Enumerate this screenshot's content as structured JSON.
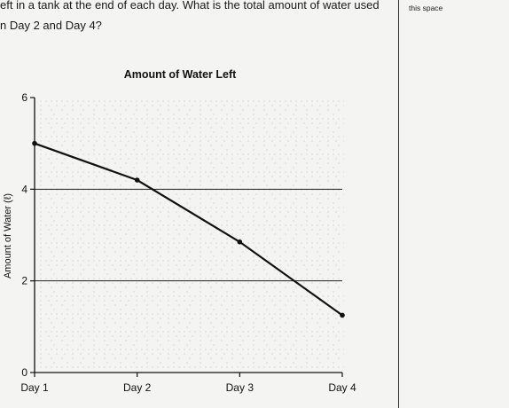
{
  "question": {
    "line1": "eft in a tank at the end of each day. What is the total amount of water used",
    "line2": "n Day 2 and Day 4?"
  },
  "side_note": "this space",
  "chart_data": {
    "type": "line",
    "title": "Amount of Water Left",
    "xlabel": "",
    "ylabel": "Amount of Water (ℓ)",
    "categories": [
      "Day 1",
      "Day 2",
      "Day 3",
      "Day 4"
    ],
    "values": [
      5.0,
      4.2,
      2.85,
      1.25
    ],
    "ylim": [
      0,
      6
    ],
    "yticks": [
      0,
      2,
      4,
      6
    ],
    "grid": "horizontal lines at 2 and 4",
    "line_color": "#111111"
  }
}
